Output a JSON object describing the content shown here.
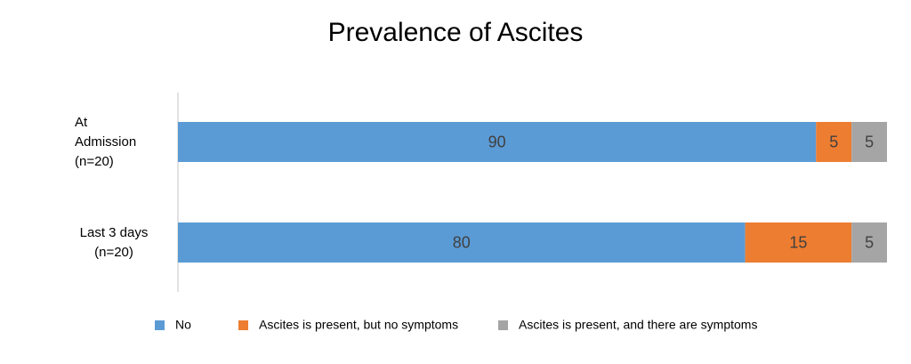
{
  "chart_data": {
    "type": "stacked-bar-horizontal",
    "title": "Prevalence of Ascites",
    "categories": [
      "At Admission (n=20)",
      "Last 3 days (n=20)"
    ],
    "series": [
      {
        "name": "No",
        "color": "#5b9bd5",
        "values": [
          90,
          80
        ]
      },
      {
        "name": "Ascites is present, but no symptoms",
        "color": "#ed7d31",
        "values": [
          5,
          15
        ]
      },
      {
        "name": "Ascites is present, and there are symptoms",
        "color": "#a5a5a5",
        "values": [
          5,
          5
        ]
      }
    ],
    "xlim": [
      0,
      100
    ],
    "legend": "bottom"
  }
}
